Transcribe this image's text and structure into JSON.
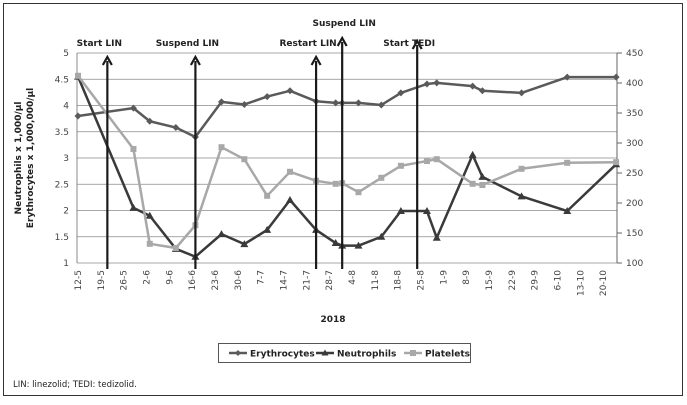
{
  "chart_data": {
    "type": "line",
    "xlabel": "2018",
    "ylabel_left": [
      "Neutrophils x 1,000/µl",
      "Erythrocytes x 1,000,000/µl"
    ],
    "ylim_left": [
      1,
      5
    ],
    "yticks_left": [
      "1",
      "1.5",
      "2",
      "2.5",
      "3",
      "3.5",
      "4",
      "4.5",
      "5"
    ],
    "ylim_right": [
      100,
      450
    ],
    "yticks_right": [
      "100",
      "150",
      "200",
      "250",
      "300",
      "350",
      "400",
      "450"
    ],
    "x_tick_labels": [
      "12-5",
      "19-5",
      "26-5",
      "2-6",
      "9-6",
      "16-6",
      "23-6",
      "30-6",
      "7-7",
      "14-7",
      "21-7",
      "28-7",
      "4-8",
      "11-8",
      "18-8",
      "25-8",
      "1-9",
      "8-9",
      "15-9",
      "22-9",
      "29-9",
      "6-10",
      "13-10",
      "20-10"
    ],
    "grid": true,
    "legend_position": "bottom",
    "series": [
      {
        "name": "Erythrocytes",
        "axis": "left",
        "marker": "diamond",
        "color": "#5a5a5a",
        "x": [
          "12-5",
          "29-5",
          "3-6",
          "11-6",
          "17-6",
          "25-6",
          "2-7",
          "9-7",
          "16-7",
          "24-7",
          "30-7",
          "1-8",
          "6-8",
          "13-8",
          "19-8",
          "27-8",
          "30-8",
          "10-9",
          "13-9",
          "25-9",
          "9-10",
          "24-10"
        ],
        "y": [
          3.8,
          3.95,
          3.7,
          3.58,
          3.4,
          4.07,
          4.02,
          4.17,
          4.28,
          4.08,
          4.05,
          4.05,
          4.05,
          4.01,
          4.24,
          4.41,
          4.43,
          4.37,
          4.28,
          4.24,
          4.54,
          4.54
        ]
      },
      {
        "name": "Neutrophils",
        "axis": "left",
        "marker": "triangle",
        "color": "#3a3a3a",
        "x": [
          "12-5",
          "29-5",
          "3-6",
          "11-6",
          "17-6",
          "25-6",
          "2-7",
          "9-7",
          "16-7",
          "24-7",
          "30-7",
          "1-8",
          "6-8",
          "13-8",
          "19-8",
          "27-8",
          "30-8",
          "10-9",
          "13-9",
          "25-9",
          "9-10",
          "24-10"
        ],
        "y": [
          4.55,
          2.05,
          1.9,
          1.27,
          1.12,
          1.55,
          1.36,
          1.63,
          2.2,
          1.63,
          1.38,
          1.33,
          1.33,
          1.5,
          1.99,
          1.99,
          1.48,
          3.06,
          2.64,
          2.27,
          1.99,
          2.88
        ]
      },
      {
        "name": "Platelets",
        "axis": "right",
        "marker": "square",
        "color": "#a8a8a8",
        "x": [
          "12-5",
          "29-5",
          "3-6",
          "11-6",
          "17-6",
          "25-6",
          "2-7",
          "9-7",
          "16-7",
          "24-7",
          "30-7",
          "1-8",
          "6-8",
          "13-8",
          "19-8",
          "27-8",
          "30-8",
          "10-9",
          "13-9",
          "25-9",
          "9-10",
          "24-10"
        ],
        "y": [
          412,
          290,
          132,
          125,
          163,
          293,
          273,
          212,
          252,
          237,
          232,
          233,
          218,
          242,
          262,
          270,
          273,
          232,
          230,
          257,
          267,
          268
        ]
      }
    ],
    "annotations": [
      {
        "label": "Start LIN",
        "x": "21-5"
      },
      {
        "label": "Suspend LIN",
        "x": "17-6"
      },
      {
        "label": "Restart LIN",
        "x": "24-7"
      },
      {
        "label": "Suspend LIN",
        "x": "1-8"
      },
      {
        "label": "Start TEDI",
        "x": "24-8"
      }
    ]
  },
  "footnote": "LIN: linezolid; TEDI: tedizolid."
}
